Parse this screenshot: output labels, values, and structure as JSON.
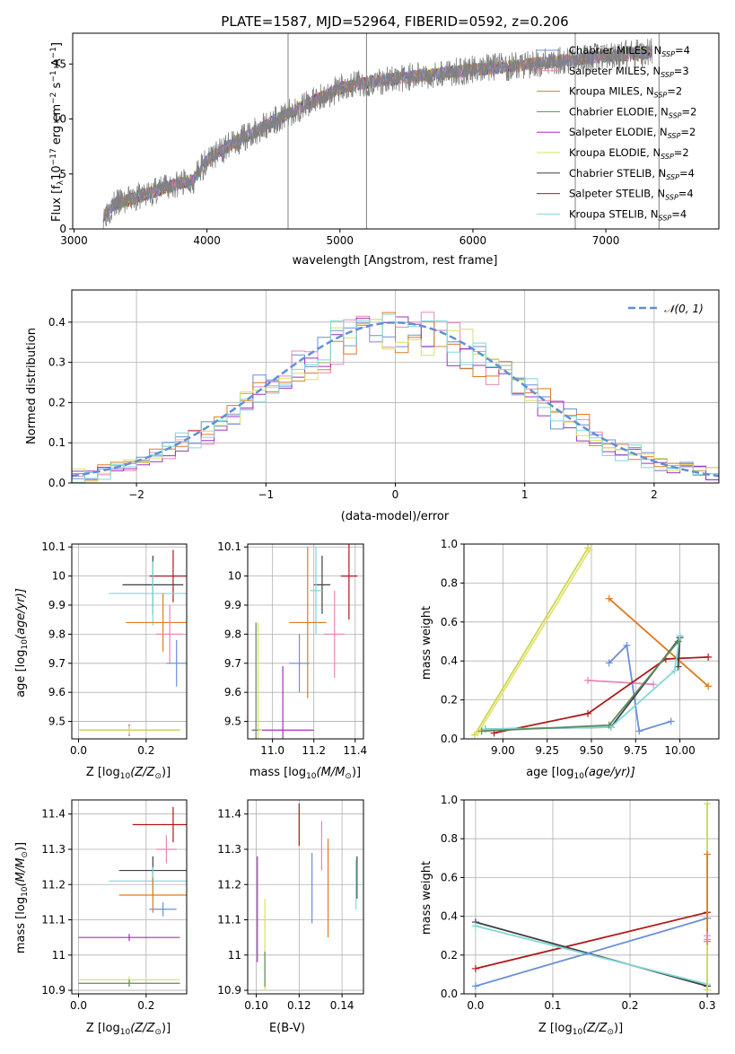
{
  "chart_data": [
    {
      "id": "spectrum",
      "type": "line",
      "title": "PLATE=1587, MJD=52964, FIBERID=0592, z=0.206",
      "xlabel": "wavelength [Angstrom, rest frame]",
      "ylabel_main": "Flux [f",
      "ylabel_sub": "λ",
      "ylabel_rest": "10",
      "ylabel_exp": "−17",
      "ylabel_tail": " erg cm",
      "ylabel_exp2": "−2",
      "ylabel_tail2": " s",
      "ylabel_exp3": "−1",
      "ylabel_tail3": " A",
      "ylabel_exp4": "−1",
      "ylabel_end": "]",
      "xlim": [
        2990,
        7850
      ],
      "ylim": [
        0,
        17.8
      ],
      "xticks": [
        3000,
        4000,
        5000,
        6000,
        7000
      ],
      "yticks": [
        0,
        5,
        10,
        15
      ],
      "grid": false,
      "legend_placement": "upper-right",
      "colors": {
        "data": "#808080"
      },
      "series": [
        {
          "name": "Chabrier MILES, N",
          "sub": "SSP",
          "tail": "=4",
          "color": "#6a8fd8"
        },
        {
          "name": "Salpeter MILES, N",
          "sub": "SSP",
          "tail": "=3",
          "color": "#e887b8"
        },
        {
          "name": "Kroupa MILES, N",
          "sub": "SSP",
          "tail": "=2",
          "color": "#c88a1a"
        },
        {
          "name": "Chabrier ELODIE, N",
          "sub": "SSP",
          "tail": "=2",
          "color": "#5e8a5e"
        },
        {
          "name": "Salpeter ELODIE, N",
          "sub": "SSP",
          "tail": "=2",
          "color": "#a030c0"
        },
        {
          "name": "Kroupa ELODIE, N",
          "sub": "SSP",
          "tail": "=2",
          "color": "#d8e060"
        },
        {
          "name": "Chabrier STELIB, N",
          "sub": "SSP",
          "tail": "=4",
          "color": "#404040"
        },
        {
          "name": "Salpeter STELIB, N",
          "sub": "SSP",
          "tail": "=4",
          "color": "#b01818"
        },
        {
          "name": "Kroupa STELIB, N",
          "sub": "SSP",
          "tail": "=4",
          "color": "#80d8d8"
        }
      ],
      "continuum": {
        "x": [
          3220,
          3300,
          3500,
          3700,
          3900,
          4000,
          4200,
          4500,
          4800,
          5000,
          5200,
          5500,
          5800,
          6000,
          6300,
          6600,
          6900,
          7200,
          7350
        ],
        "y": [
          1.2,
          2.2,
          3.0,
          3.8,
          4.5,
          6.3,
          7.8,
          9.8,
          11.6,
          12.8,
          13.3,
          13.8,
          14.2,
          14.5,
          14.8,
          15.2,
          15.6,
          15.9,
          16.1
        ]
      },
      "spikes": [
        {
          "x": 4610,
          "y": 17.8
        },
        {
          "x": 5200,
          "y": 17.8
        },
        {
          "x": 6770,
          "y": 17.8
        },
        {
          "x": 7400,
          "y": 17.8
        }
      ]
    },
    {
      "id": "residuals",
      "type": "line",
      "xlabel": "(data-model)/error",
      "ylabel": "Normed distribution",
      "xlim": [
        -2.5,
        2.5
      ],
      "ylim": [
        0,
        0.48
      ],
      "xticks": [
        -2,
        -1,
        0,
        1,
        2
      ],
      "xticklabels": [
        "−2",
        "−1",
        "0",
        "1",
        "2"
      ],
      "yticks": [
        0,
        0.1,
        0.2,
        0.3,
        0.4
      ],
      "yticklabels": [
        "0.0",
        "0.1",
        "0.2",
        "0.3",
        "0.4"
      ],
      "grid": true,
      "legend_placement": "upper-right",
      "legend": "𝒩(0, 1)",
      "gaussian": {
        "mu": 0,
        "sigma": 1,
        "color": "#5f8fd8"
      },
      "hist_colors": [
        "#6a8fd8",
        "#e887b8",
        "#e07a20",
        "#a030c0",
        "#d8e060",
        "#80d8d8"
      ]
    },
    {
      "id": "age-vs-z",
      "type": "scatter",
      "xlabel": "Z [log",
      "xlabel_sub": "10",
      "xlabel_end": "(Z/Z",
      "xlabel_sun": "⊙",
      "xlabel_close": ")]",
      "ylabel": "age  [log",
      "ylabel_sub": "10",
      "ylabel_end": "(age/yr)]",
      "xlim": [
        -0.02,
        0.32
      ],
      "ylim": [
        9.44,
        10.11
      ],
      "xticks": [
        0.0,
        0.2
      ],
      "xticklabels": [
        "0.0",
        "0.2"
      ],
      "yticks": [
        9.5,
        9.6,
        9.7,
        9.8,
        9.9,
        10.0,
        10.1
      ],
      "grid": true,
      "points": [
        {
          "x": 0.28,
          "y": 10.0,
          "xerr": 0.07,
          "yerr": 0.09,
          "color": "#b01818"
        },
        {
          "x": 0.22,
          "y": 9.97,
          "xerr": 0.09,
          "yerr": 0.1,
          "color": "#404040"
        },
        {
          "x": 0.22,
          "y": 9.94,
          "xerr": 0.13,
          "yerr": 0.11,
          "color": "#80d8d8"
        },
        {
          "x": 0.25,
          "y": 9.84,
          "xerr": 0.11,
          "yerr": 0.1,
          "color": "#e07a20"
        },
        {
          "x": 0.27,
          "y": 9.8,
          "xerr": 0.04,
          "yerr": 0.1,
          "color": "#e887b8"
        },
        {
          "x": 0.29,
          "y": 9.7,
          "xerr": 0.03,
          "yerr": 0.08,
          "color": "#6a8fd8"
        },
        {
          "x": 0.15,
          "y": 9.47,
          "xerr": 0.15,
          "yerr": 0.02,
          "color": "#a030c0"
        },
        {
          "x": 0.15,
          "y": 9.47,
          "xerr": 0.15,
          "yerr": 0.015,
          "color": "#d8e060"
        }
      ]
    },
    {
      "id": "age-vs-mass",
      "type": "scatter",
      "xlabel": "mass [log",
      "xlabel_sub": "10",
      "xlabel_end": "(M/M",
      "xlabel_sun": "⊙",
      "xlabel_close": ")]",
      "xlim": [
        10.88,
        11.44
      ],
      "ylim": [
        9.44,
        10.11
      ],
      "xticks": [
        11.0,
        11.2,
        11.4
      ],
      "xticklabels": [
        "11.0",
        "11.2",
        "11.4"
      ],
      "yticks": [
        9.5,
        9.6,
        9.7,
        9.8,
        9.9,
        10.0,
        10.1
      ],
      "grid": true,
      "points": [
        {
          "x": 11.37,
          "y": 10.0,
          "xerr": 0.04,
          "yerr": 0.15,
          "color": "#b01818"
        },
        {
          "x": 11.24,
          "y": 9.97,
          "xerr": 0.04,
          "yerr": 0.1,
          "color": "#404040"
        },
        {
          "x": 11.21,
          "y": 9.95,
          "xerr": 0.03,
          "yerr": 0.15,
          "color": "#80d8d8"
        },
        {
          "x": 11.17,
          "y": 9.84,
          "xerr": 0.09,
          "yerr": 0.26,
          "color": "#e07a20"
        },
        {
          "x": 11.3,
          "y": 9.8,
          "xerr": 0.05,
          "yerr": 0.15,
          "color": "#e887b8"
        },
        {
          "x": 11.13,
          "y": 9.7,
          "xerr": 0.05,
          "yerr": 0.1,
          "color": "#6a8fd8"
        },
        {
          "x": 11.05,
          "y": 9.47,
          "xerr": 0.15,
          "yerr": 0.22,
          "color": "#a030c0"
        },
        {
          "x": 10.93,
          "y": 9.47,
          "xerr": 0.02,
          "yerr": 0.37,
          "color": "#d8e060"
        },
        {
          "x": 10.92,
          "y": 9.47,
          "xerr": 0.01,
          "yerr": 0.37,
          "color": "#5e8a5e"
        }
      ]
    },
    {
      "id": "weight-vs-age",
      "type": "line",
      "xlabel": "age  [log",
      "xlabel_sub": "10",
      "xlabel_end": "(age/yr)]",
      "ylabel": "mass weight",
      "xlim": [
        8.78,
        10.22
      ],
      "ylim": [
        0,
        1
      ],
      "xticks": [
        9.0,
        9.25,
        9.5,
        9.75,
        10.0
      ],
      "xticklabels": [
        "9.00",
        "9.25",
        "9.50",
        "9.75",
        "10.00"
      ],
      "yticks": [
        0,
        0.2,
        0.4,
        0.6,
        0.8,
        1.0
      ],
      "yticklabels": [
        "0.0",
        "0.2",
        "0.4",
        "0.6",
        "0.8",
        "1.0"
      ],
      "grid": true,
      "series": [
        {
          "color": "#c8d850",
          "x": [
            8.84,
            9.48
          ],
          "y": [
            0.02,
            0.98
          ]
        },
        {
          "color": "#e8e070",
          "x": [
            8.86,
            9.49
          ],
          "y": [
            0.03,
            0.97
          ]
        },
        {
          "color": "#e07a20",
          "x": [
            9.6,
            10.16
          ],
          "y": [
            0.72,
            0.27
          ]
        },
        {
          "color": "#6a8fd8",
          "x": [
            9.6,
            9.7,
            9.77,
            9.95
          ],
          "y": [
            0.39,
            0.48,
            0.04,
            0.09
          ]
        },
        {
          "color": "#e887b8",
          "x": [
            9.48,
            9.85
          ],
          "y": [
            0.3,
            0.28
          ]
        },
        {
          "color": "#b01818",
          "x": [
            8.95,
            9.48,
            9.92,
            10.16
          ],
          "y": [
            0.03,
            0.13,
            0.41,
            0.42
          ]
        },
        {
          "color": "#404040",
          "x": [
            8.9,
            9.61,
            10.0,
            9.99
          ],
          "y": [
            0.05,
            0.06,
            0.52,
            0.37
          ]
        },
        {
          "color": "#80d8d8",
          "x": [
            8.9,
            9.61,
            9.97,
            10.0
          ],
          "y": [
            0.05,
            0.06,
            0.35,
            0.53
          ]
        },
        {
          "color": "#5e8a5e",
          "x": [
            8.88,
            9.6,
            9.99
          ],
          "y": [
            0.04,
            0.07,
            0.5
          ]
        }
      ]
    },
    {
      "id": "mass-vs-z",
      "type": "scatter",
      "xlabel": "Z [log",
      "xlabel_sub": "10",
      "xlabel_end": "(Z/Z",
      "xlabel_sun": "⊙",
      "xlabel_close": ")]",
      "ylabel": "mass [log",
      "ylabel_sub": "10",
      "ylabel_end": "(M/M",
      "ylabel_sun": "⊙",
      "ylabel_close": ")]",
      "xlim": [
        -0.02,
        0.32
      ],
      "ylim": [
        10.89,
        11.44
      ],
      "xticks": [
        0.0,
        0.2
      ],
      "xticklabels": [
        "0.0",
        "0.2"
      ],
      "yticks": [
        10.9,
        11.0,
        11.1,
        11.2,
        11.3,
        11.4
      ],
      "grid": true,
      "points": [
        {
          "x": 0.28,
          "y": 11.37,
          "xerr": 0.12,
          "yerr": 0.05,
          "color": "#b01818"
        },
        {
          "x": 0.26,
          "y": 11.3,
          "xerr": 0.03,
          "yerr": 0.04,
          "color": "#e887b8"
        },
        {
          "x": 0.22,
          "y": 11.24,
          "xerr": 0.1,
          "yerr": 0.04,
          "color": "#404040"
        },
        {
          "x": 0.22,
          "y": 11.21,
          "xerr": 0.13,
          "yerr": 0.04,
          "color": "#80d8d8"
        },
        {
          "x": 0.22,
          "y": 11.17,
          "xerr": 0.1,
          "yerr": 0.05,
          "color": "#e07a20"
        },
        {
          "x": 0.25,
          "y": 11.13,
          "xerr": 0.04,
          "yerr": 0.02,
          "color": "#6a8fd8"
        },
        {
          "x": 0.15,
          "y": 11.05,
          "xerr": 0.15,
          "yerr": 0.01,
          "color": "#a030c0"
        },
        {
          "x": 0.15,
          "y": 10.93,
          "xerr": 0.15,
          "yerr": 0.01,
          "color": "#d8e060"
        },
        {
          "x": 0.15,
          "y": 10.92,
          "xerr": 0.15,
          "yerr": 0.01,
          "color": "#5e8a5e"
        }
      ]
    },
    {
      "id": "mass-vs-ebv",
      "type": "scatter",
      "xlabel": "E(B-V)",
      "xlim": [
        0.096,
        0.15
      ],
      "ylim": [
        10.89,
        11.44
      ],
      "xticks": [
        0.1,
        0.12,
        0.14
      ],
      "xticklabels": [
        "0.10",
        "0.12",
        "0.14"
      ],
      "yticks": [
        10.9,
        11.0,
        11.1,
        11.2,
        11.3,
        11.4
      ],
      "grid": true,
      "points": [
        {
          "x": 0.12,
          "y": 11.37,
          "xerr": 0,
          "yerr": 0.06,
          "color": "#b01818"
        },
        {
          "x": 0.1305,
          "y": 11.31,
          "xerr": 0,
          "yerr": 0.07,
          "color": "#e887b8"
        },
        {
          "x": 0.126,
          "y": 11.19,
          "xerr": 0,
          "yerr": 0.1,
          "color": "#6a8fd8"
        },
        {
          "x": 0.1335,
          "y": 11.19,
          "xerr": 0,
          "yerr": 0.14,
          "color": "#e07a20"
        },
        {
          "x": 0.147,
          "y": 11.22,
          "xerr": 0,
          "yerr": 0.06,
          "color": "#404040"
        },
        {
          "x": 0.1465,
          "y": 11.2,
          "xerr": 0,
          "yerr": 0.07,
          "color": "#80d8d8"
        },
        {
          "x": 0.1005,
          "y": 11.13,
          "xerr": 0,
          "yerr": 0.15,
          "color": "#a030c0"
        },
        {
          "x": 0.104,
          "y": 11.03,
          "xerr": 0,
          "yerr": 0.13,
          "color": "#d8e060"
        },
        {
          "x": 0.104,
          "y": 10.96,
          "xerr": 0,
          "yerr": 0.05,
          "color": "#5e8a5e"
        }
      ]
    },
    {
      "id": "weight-vs-z",
      "type": "line",
      "xlabel": "Z [log",
      "xlabel_sub": "10",
      "xlabel_end": "(Z/Z",
      "xlabel_sun": "⊙",
      "xlabel_close": ")]",
      "ylabel": "mass weight",
      "xlim": [
        -0.015,
        0.315
      ],
      "ylim": [
        0,
        1
      ],
      "xticks": [
        0.0,
        0.1,
        0.2,
        0.3
      ],
      "xticklabels": [
        "0.0",
        "0.1",
        "0.2",
        "0.3"
      ],
      "yticks": [
        0,
        0.2,
        0.4,
        0.6,
        0.8,
        1.0
      ],
      "yticklabels": [
        "0.0",
        "0.2",
        "0.4",
        "0.6",
        "0.8",
        "1.0"
      ],
      "grid": true,
      "series": [
        {
          "color": "#b01818",
          "x": [
            0.0,
            0.3
          ],
          "y": [
            0.13,
            0.42
          ]
        },
        {
          "color": "#404040",
          "x": [
            0.0,
            0.3
          ],
          "y": [
            0.37,
            0.04
          ]
        },
        {
          "color": "#80d8d8",
          "x": [
            0.0,
            0.3
          ],
          "y": [
            0.35,
            0.05
          ]
        },
        {
          "color": "#6a8fd8",
          "x": [
            0.0,
            0.3
          ],
          "y": [
            0.04,
            0.39
          ]
        },
        {
          "color": "#c8d850",
          "x": [
            0.3,
            0.3
          ],
          "y": [
            0.02,
            0.98
          ]
        },
        {
          "color": "#e07a20",
          "x": [
            0.3,
            0.3
          ],
          "y": [
            0.27,
            0.72
          ]
        },
        {
          "color": "#e887b8",
          "x": [
            0.3,
            0.3
          ],
          "y": [
            0.28,
            0.3
          ]
        }
      ]
    }
  ]
}
